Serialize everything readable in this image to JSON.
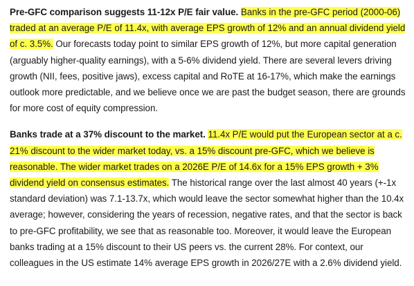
{
  "paragraphs": [
    {
      "lead": "Pre-GFC comparison suggests 11-12x P/E fair value.",
      "highlight": "Banks in the pre-GFC period (2000-06) traded at an average P/E of 11.4x, with average EPS growth of 12% and an annual dividend yield of c. 3.5%.",
      "body": "Our forecasts today point to similar EPS growth of 12%, but more capital generation (arguably higher-quality earnings), with a 5-6% dividend yield. There are several levers driving growth (NII, fees, positive jaws), excess capital and RoTE at 16-17%, which make the earnings outlook more predictable, and we believe once we are past the budget season, there are grounds for more cost of equity compression."
    },
    {
      "lead": "Banks trade at a 37% discount to the market.",
      "highlight": "11.4x P/E would put the European sector at a c. 21% discount to the wider market today, vs. a 15% discount pre-GFC, which we believe is reasonable. The wider market trades on a 2026E P/E of 14.6x for a 15% EPS growth + 3% dividend yield on consensus estimates.",
      "body": "The historical range over the last almost 40 years (+-1x standard deviation) was 7.1-13.7x, which would leave the sector somewhat higher than the 10.4x average; however, considering the years of recession, negative rates, and that the sector is back to pre-GFC profitability, we see that as reasonable too. Moreover, it would leave the European banks trading at a 15% discount to their US peers vs. the current 28%. For context, our colleagues in the US estimate 14% average EPS growth in 2026/27E with a 2.6% dividend yield."
    }
  ],
  "colors": {
    "highlight": "#ffff4d",
    "text": "#1a1a1a",
    "background": "#ffffff"
  }
}
